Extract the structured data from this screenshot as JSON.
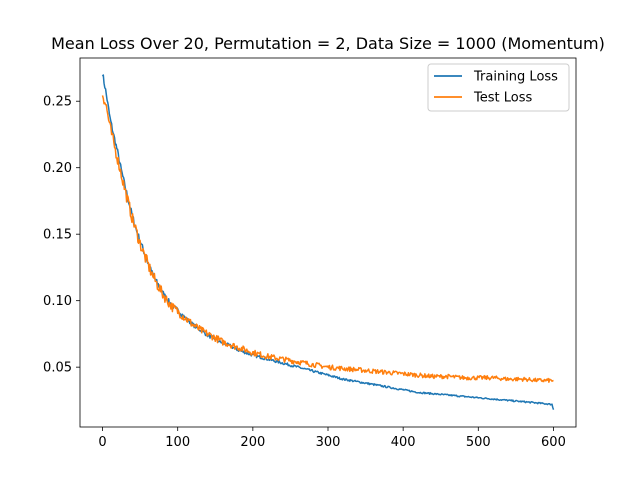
{
  "chart_data": {
    "type": "line",
    "title": "Mean Loss Over 20, Permutation = 2, Data Size = 1000 (Momentum)",
    "xlabel": "",
    "ylabel": "",
    "xlim": [
      -30,
      630
    ],
    "ylim": [
      0.005,
      0.2825
    ],
    "xticks": [
      0,
      100,
      200,
      300,
      400,
      500,
      600
    ],
    "xtick_labels": [
      "0",
      "100",
      "200",
      "300",
      "400",
      "500",
      "600"
    ],
    "yticks": [
      0.05,
      0.1,
      0.15,
      0.2,
      0.25
    ],
    "ytick_labels": [
      "0.05",
      "0.10",
      "0.15",
      "0.20",
      "0.25"
    ],
    "grid": false,
    "legend_position": "top-right",
    "series": [
      {
        "name": "Training Loss",
        "color": "#1f77b4",
        "x": [
          0,
          5,
          10,
          15,
          20,
          25,
          30,
          35,
          40,
          45,
          50,
          55,
          60,
          65,
          70,
          75,
          80,
          85,
          90,
          95,
          100,
          110,
          120,
          130,
          140,
          150,
          160,
          170,
          180,
          190,
          200,
          220,
          240,
          260,
          280,
          300,
          320,
          340,
          360,
          380,
          400,
          420,
          440,
          460,
          480,
          500,
          520,
          540,
          560,
          580,
          598,
          600
        ],
        "y": [
          0.271,
          0.255,
          0.237,
          0.224,
          0.212,
          0.198,
          0.186,
          0.174,
          0.163,
          0.153,
          0.145,
          0.137,
          0.129,
          0.122,
          0.116,
          0.111,
          0.106,
          0.102,
          0.098,
          0.095,
          0.093,
          0.087,
          0.082,
          0.078,
          0.074,
          0.071,
          0.068,
          0.066,
          0.063,
          0.061,
          0.059,
          0.056,
          0.053,
          0.05,
          0.047,
          0.044,
          0.041,
          0.039,
          0.037,
          0.035,
          0.033,
          0.031,
          0.03,
          0.029,
          0.028,
          0.027,
          0.026,
          0.025,
          0.024,
          0.023,
          0.022,
          0.018
        ]
      },
      {
        "name": "Test Loss",
        "color": "#ff7f0e",
        "x": [
          0,
          5,
          10,
          15,
          20,
          25,
          30,
          35,
          40,
          45,
          50,
          55,
          60,
          65,
          70,
          75,
          80,
          85,
          90,
          95,
          100,
          110,
          120,
          130,
          140,
          150,
          160,
          170,
          180,
          190,
          200,
          220,
          240,
          260,
          280,
          300,
          320,
          340,
          360,
          380,
          400,
          420,
          440,
          460,
          480,
          500,
          520,
          540,
          560,
          580,
          600
        ],
        "y": [
          0.256,
          0.246,
          0.23,
          0.218,
          0.207,
          0.195,
          0.183,
          0.172,
          0.161,
          0.152,
          0.143,
          0.135,
          0.128,
          0.121,
          0.115,
          0.11,
          0.105,
          0.101,
          0.097,
          0.094,
          0.092,
          0.087,
          0.082,
          0.078,
          0.075,
          0.072,
          0.069,
          0.067,
          0.065,
          0.063,
          0.061,
          0.058,
          0.056,
          0.054,
          0.052,
          0.05,
          0.049,
          0.048,
          0.047,
          0.046,
          0.045,
          0.044,
          0.043,
          0.043,
          0.042,
          0.042,
          0.042,
          0.041,
          0.041,
          0.04,
          0.04
        ]
      }
    ]
  }
}
